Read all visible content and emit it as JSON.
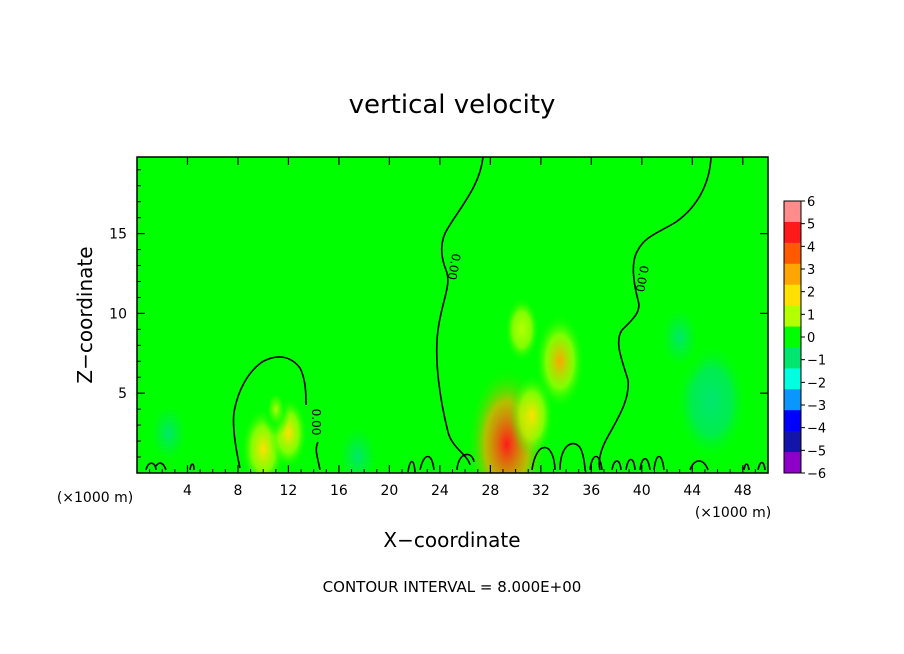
{
  "chart_data": {
    "type": "heatmap",
    "title": "vertical velocity",
    "xlabel": "X−coordinate",
    "ylabel": "Z−coordinate",
    "x_unit_left": "(×1000 m)",
    "x_unit_right": "(×1000 m)",
    "footer": "CONTOUR INTERVAL = 8.000E+00",
    "xlim": [
      0,
      50
    ],
    "ylim": [
      0,
      19.8
    ],
    "x_ticks": [
      4,
      8,
      12,
      16,
      20,
      24,
      28,
      32,
      36,
      40,
      44,
      48
    ],
    "y_ticks": [
      5,
      10,
      15
    ],
    "contour_label": "0.00",
    "colorbar": {
      "min": -6,
      "max": 6,
      "labels": [
        "6",
        "5",
        "4",
        "3",
        "2",
        "1",
        "0",
        "−1",
        "−2",
        "−3",
        "−4",
        "−5",
        "−6"
      ],
      "colors": [
        "#ff8c8c",
        "#ff1a1a",
        "#ff5a00",
        "#ffa500",
        "#ffe000",
        "#b4ff00",
        "#00ff00",
        "#00e66e",
        "#00ffe0",
        "#0a96ff",
        "#0000ff",
        "#1414aa",
        "#8c00c8"
      ]
    },
    "features": [
      {
        "type": "updraft",
        "x": 29.3,
        "z": 1.8,
        "value": 5.0
      },
      {
        "type": "updraft",
        "x": 33.5,
        "z": 7.0,
        "value": 2.5
      },
      {
        "type": "updraft",
        "x": 31.3,
        "z": 3.6,
        "value": 2.0
      },
      {
        "type": "updraft",
        "x": 30.5,
        "z": 9.0,
        "value": 1.2
      },
      {
        "type": "updraft",
        "x": 10.0,
        "z": 1.5,
        "value": 2.0
      },
      {
        "type": "updraft",
        "x": 12.0,
        "z": 2.5,
        "value": 1.5
      },
      {
        "type": "updraft",
        "x": 11.0,
        "z": 4.0,
        "value": 0.8
      },
      {
        "type": "downdraft",
        "x": 45.5,
        "z": 4.5,
        "value": -1.4
      },
      {
        "type": "downdraft",
        "x": 43.0,
        "z": 8.5,
        "value": -0.7
      },
      {
        "type": "downdraft",
        "x": 2.5,
        "z": 2.5,
        "value": -0.6
      },
      {
        "type": "downdraft",
        "x": 17.5,
        "z": 1.0,
        "value": -0.9
      },
      {
        "type": "downdraft",
        "x": 21.0,
        "z": 4.0,
        "value": -0.4
      }
    ]
  }
}
